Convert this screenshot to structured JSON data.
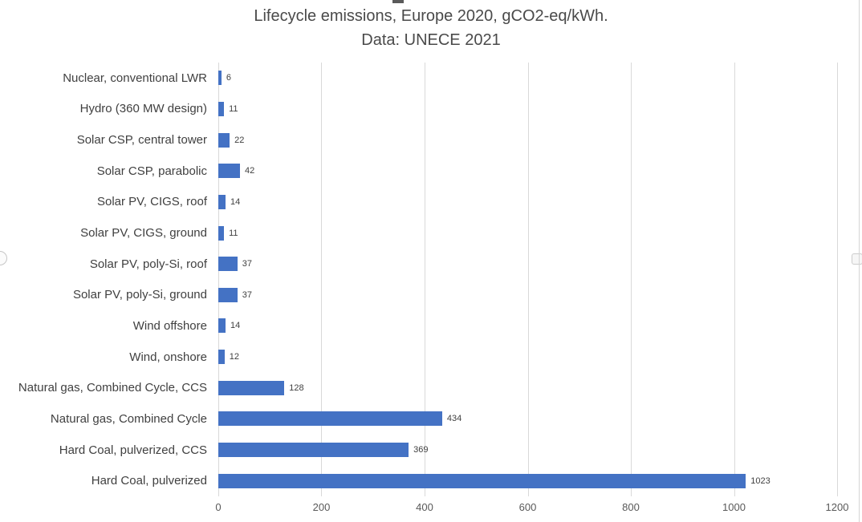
{
  "title": {
    "line1": "Lifecycle emissions, Europe 2020, gCO2-eq/kWh.",
    "line2": "Data: UNECE 2021"
  },
  "chart_data": {
    "type": "bar",
    "orientation": "horizontal",
    "title": "Lifecycle emissions, Europe 2020, gCO2-eq/kWh. Data: UNECE 2021",
    "categories": [
      "Nuclear, conventional LWR",
      "Hydro (360 MW design)",
      "Solar CSP, central tower",
      "Solar CSP, parabolic",
      "Solar PV, CIGS, roof",
      "Solar PV, CIGS, ground",
      "Solar PV, poly-Si, roof",
      "Solar PV, poly-Si, ground",
      "Wind offshore",
      "Wind, onshore",
      "Natural gas, Combined Cycle, CCS",
      "Natural gas, Combined Cycle",
      "Hard Coal, pulverized, CCS",
      "Hard Coal, pulverized"
    ],
    "values": [
      6,
      11,
      22,
      42,
      14,
      11,
      37,
      37,
      14,
      12,
      128,
      434,
      369,
      1023
    ],
    "data_labels": [
      "6",
      "11",
      "22",
      "42",
      "14",
      "11",
      "37",
      "37",
      "14",
      "12",
      "128",
      "434",
      "369",
      "1023"
    ],
    "xlabel": "",
    "ylabel": "",
    "xlim": [
      0,
      1200
    ],
    "x_ticks": [
      "0",
      "200",
      "400",
      "600",
      "800",
      "1000",
      "1200"
    ],
    "grid": "vertical",
    "legend": "none",
    "bar_color": "#4472c4",
    "gridline_color": "#d9d9d9"
  }
}
